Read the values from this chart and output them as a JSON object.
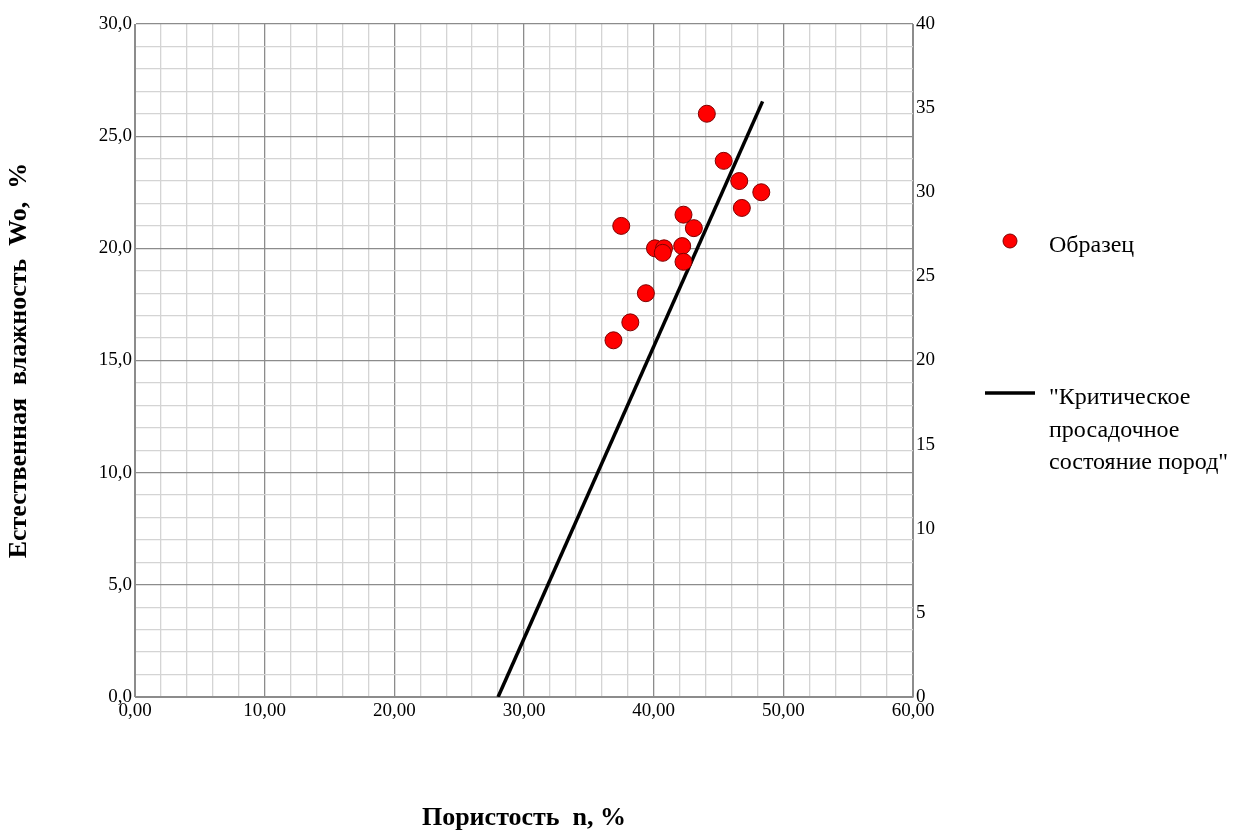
{
  "chart_data": {
    "type": "scatter",
    "xlabel": "Пористость  n, %",
    "ylabel": "Естественная  влажность  Wo,  %",
    "legend": "right",
    "grid": true,
    "marker": "circle",
    "xlim": [
      0,
      60
    ],
    "ylim": [
      0,
      30
    ],
    "y2lim": [
      0,
      40
    ],
    "xticks": [
      {
        "value": 0,
        "label": "0,00"
      },
      {
        "value": 2,
        "label": null
      },
      {
        "value": 4,
        "label": null
      },
      {
        "value": 6,
        "label": null
      },
      {
        "value": 8,
        "label": null
      },
      {
        "value": 10,
        "label": "10,00"
      },
      {
        "value": 12,
        "label": null
      },
      {
        "value": 14,
        "label": null
      },
      {
        "value": 16,
        "label": null
      },
      {
        "value": 18,
        "label": null
      },
      {
        "value": 20,
        "label": "20,00"
      },
      {
        "value": 22,
        "label": null
      },
      {
        "value": 24,
        "label": null
      },
      {
        "value": 26,
        "label": null
      },
      {
        "value": 28,
        "label": null
      },
      {
        "value": 30,
        "label": "30,00"
      },
      {
        "value": 32,
        "label": null
      },
      {
        "value": 34,
        "label": null
      },
      {
        "value": 36,
        "label": null
      },
      {
        "value": 38,
        "label": null
      },
      {
        "value": 40,
        "label": "40,00"
      },
      {
        "value": 42,
        "label": null
      },
      {
        "value": 44,
        "label": null
      },
      {
        "value": 46,
        "label": null
      },
      {
        "value": 48,
        "label": null
      },
      {
        "value": 50,
        "label": "50,00"
      },
      {
        "value": 52,
        "label": null
      },
      {
        "value": 54,
        "label": null
      },
      {
        "value": 56,
        "label": null
      },
      {
        "value": 58,
        "label": null
      },
      {
        "value": 60,
        "label": "60,00"
      }
    ],
    "yticks": [
      {
        "value": 0,
        "label": "0,0"
      },
      {
        "value": 1,
        "label": null
      },
      {
        "value": 2,
        "label": null
      },
      {
        "value": 3,
        "label": null
      },
      {
        "value": 4,
        "label": null
      },
      {
        "value": 5,
        "label": "5,0"
      },
      {
        "value": 6,
        "label": null
      },
      {
        "value": 7,
        "label": null
      },
      {
        "value": 8,
        "label": null
      },
      {
        "value": 9,
        "label": null
      },
      {
        "value": 10,
        "label": "10,0"
      },
      {
        "value": 11,
        "label": null
      },
      {
        "value": 12,
        "label": null
      },
      {
        "value": 13,
        "label": null
      },
      {
        "value": 14,
        "label": null
      },
      {
        "value": 15,
        "label": "15,0"
      },
      {
        "value": 16,
        "label": null
      },
      {
        "value": 17,
        "label": null
      },
      {
        "value": 18,
        "label": null
      },
      {
        "value": 19,
        "label": null
      },
      {
        "value": 20,
        "label": "20,0"
      },
      {
        "value": 21,
        "label": null
      },
      {
        "value": 22,
        "label": null
      },
      {
        "value": 23,
        "label": null
      },
      {
        "value": 24,
        "label": null
      },
      {
        "value": 25,
        "label": "25,0"
      },
      {
        "value": 26,
        "label": null
      },
      {
        "value": 27,
        "label": null
      },
      {
        "value": 28,
        "label": null
      },
      {
        "value": 29,
        "label": null
      },
      {
        "value": 30,
        "label": "30,0"
      }
    ],
    "y2ticks": [
      0,
      5,
      10,
      15,
      20,
      25,
      30,
      35,
      40
    ],
    "series": [
      {
        "name": "Образец",
        "type": "scatter",
        "color": "#ff0000",
        "x": [
          44.1,
          45.4,
          46.6,
          48.3,
          46.8,
          37.5,
          42.3,
          43.1,
          40.1,
          40.8,
          40.7,
          42.2,
          42.3,
          39.4,
          38.2,
          36.9
        ],
        "values": [
          26.0,
          23.9,
          23.0,
          22.5,
          21.8,
          21.0,
          21.5,
          20.9,
          20.0,
          20.0,
          19.8,
          20.1,
          19.4,
          18.0,
          16.7,
          15.9
        ]
      },
      {
        "name": "\"Критическое просадочное состояние пород\"",
        "type": "line",
        "axis": "y2",
        "color": "#000000",
        "line_style": "solid",
        "marker": "none",
        "x": [
          28.0,
          48.4
        ],
        "values": [
          0,
          35.4
        ]
      }
    ]
  }
}
